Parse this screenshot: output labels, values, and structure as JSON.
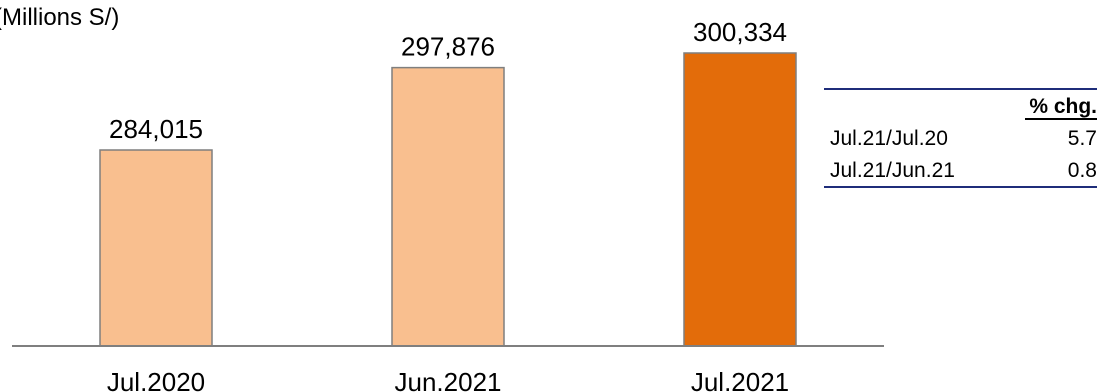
{
  "unit_label": "(Millions  S/)",
  "colors": {
    "bar_light": "#f9bf8f",
    "bar_dark": "#e36c0a",
    "bar_border": "#7f7f7f",
    "baseline": "#7f7f7f",
    "table_rule": "#1f2d7a"
  },
  "chart_data": {
    "type": "bar",
    "categories": [
      "Jul.2020",
      "Jun.2021",
      "Jul.2021"
    ],
    "values": [
      284015,
      297876,
      300334
    ],
    "value_labels": [
      "284,015",
      "297,876",
      "300,334"
    ],
    "ylim": [
      0,
      300334
    ],
    "highlight_index": 2,
    "title": "",
    "xlabel": "",
    "ylabel": "(Millions  S/)",
    "grid": false
  },
  "change_table": {
    "header": "% chg.",
    "rows": [
      {
        "period": "Jul.21/Jul.20",
        "value": "5.7"
      },
      {
        "period": "Jul.21/Jun.21",
        "value": "0.8"
      }
    ]
  }
}
